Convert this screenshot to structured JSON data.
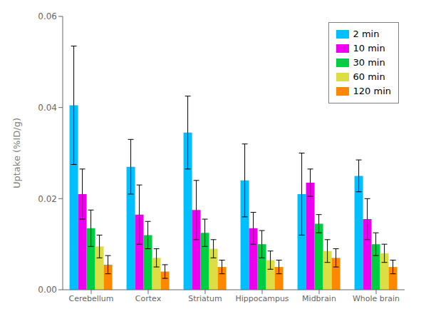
{
  "chart_data": {
    "type": "bar",
    "categories": [
      "Cerebellum",
      "Cortex",
      "Striatum",
      "Hippocampus",
      "Midbrain",
      "Whole brain"
    ],
    "series": [
      {
        "name": "2 min",
        "color": "#00BFFF",
        "values": [
          0.0405,
          0.027,
          0.0345,
          0.024,
          0.021,
          0.025
        ],
        "errors": [
          0.013,
          0.006,
          0.008,
          0.008,
          0.009,
          0.0035
        ]
      },
      {
        "name": "10 min",
        "color": "#EE00EE",
        "values": [
          0.021,
          0.0165,
          0.0175,
          0.0135,
          0.0235,
          0.0155
        ],
        "errors": [
          0.0055,
          0.0065,
          0.0065,
          0.0035,
          0.003,
          0.0045
        ]
      },
      {
        "name": "30 min",
        "color": "#00CC44",
        "values": [
          0.0135,
          0.012,
          0.0125,
          0.01,
          0.0145,
          0.01
        ],
        "errors": [
          0.004,
          0.003,
          0.003,
          0.003,
          0.002,
          0.0025
        ]
      },
      {
        "name": "60 min",
        "color": "#DDDD44",
        "values": [
          0.0095,
          0.007,
          0.009,
          0.0065,
          0.0085,
          0.008
        ],
        "errors": [
          0.0025,
          0.002,
          0.002,
          0.002,
          0.0025,
          0.002
        ]
      },
      {
        "name": "120 min",
        "color": "#FF8800",
        "values": [
          0.0055,
          0.004,
          0.005,
          0.005,
          0.007,
          0.005
        ],
        "errors": [
          0.002,
          0.0015,
          0.0015,
          0.0015,
          0.002,
          0.0015
        ]
      }
    ],
    "y_label": "Uptake (%ID/g)",
    "ylim": [
      0,
      0.06
    ],
    "yticks": [
      {
        "value": 0,
        "label": "0.00"
      },
      0.02,
      0.04,
      0.06
    ],
    "grid": false,
    "legend": "upper right"
  }
}
